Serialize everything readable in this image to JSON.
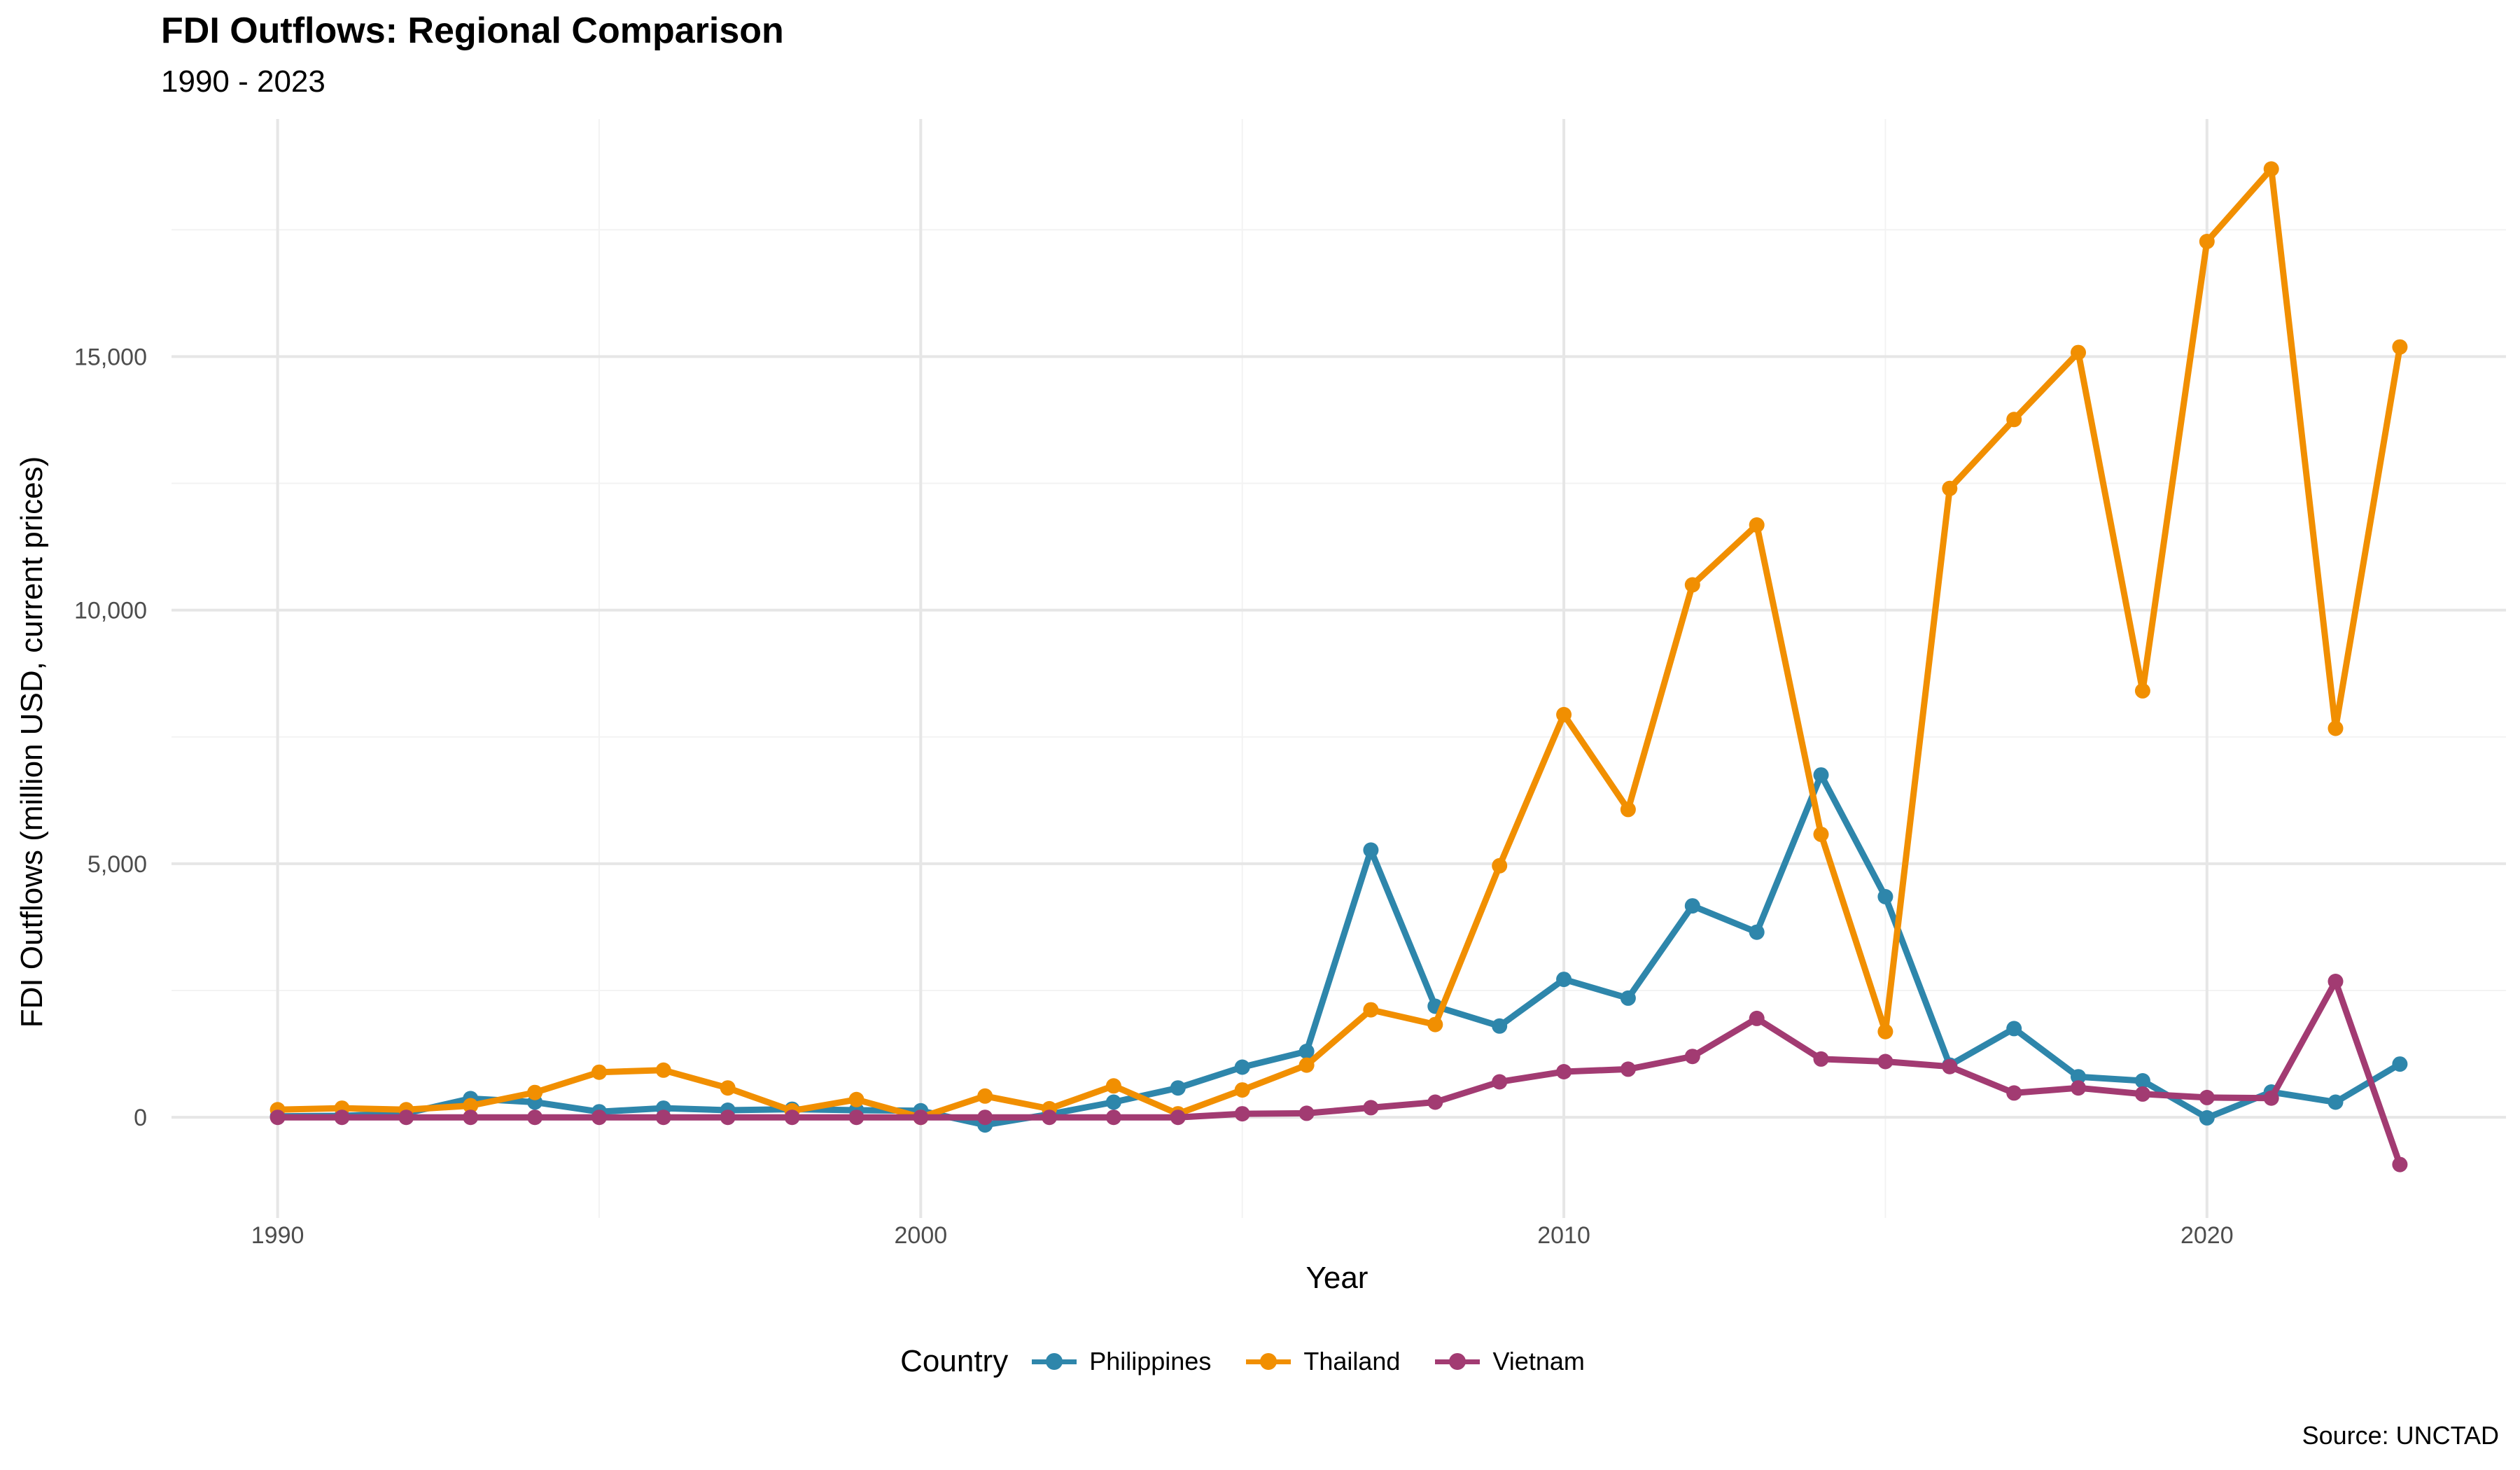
{
  "title": "FDI Outflows: Regional Comparison",
  "subtitle": "1990 - 2023",
  "caption": "Source: UNCTAD",
  "legend_title": "Country",
  "chart_data": {
    "type": "line",
    "xlabel": "Year",
    "ylabel": "FDI Outflows (million USD, current prices)",
    "xlim": [
      1990,
      2023
    ],
    "ylim": [
      -1000,
      18700
    ],
    "xticks": [
      1990,
      2000,
      2010,
      2020
    ],
    "yticks": [
      0,
      5000,
      10000,
      15000
    ],
    "ytick_labels": [
      "0",
      "5,000",
      "10,000",
      "15,000"
    ],
    "grid": true,
    "legend_position": "bottom",
    "x": [
      1990,
      1991,
      1992,
      1993,
      1994,
      1995,
      1996,
      1997,
      1998,
      1999,
      2000,
      2001,
      2002,
      2003,
      2004,
      2005,
      2006,
      2007,
      2008,
      2009,
      2010,
      2011,
      2012,
      2013,
      2014,
      2015,
      2016,
      2017,
      2018,
      2019,
      2020,
      2021,
      2022,
      2023
    ],
    "series": [
      {
        "name": "Philippines",
        "color": "#2E86AB",
        "values": [
          20,
          30,
          80,
          370,
          300,
          110,
          180,
          140,
          160,
          140,
          130,
          -150,
          60,
          300,
          580,
          990,
          1300,
          5270,
          2190,
          1800,
          2720,
          2350,
          4170,
          3650,
          6750,
          4350,
          1030,
          1750,
          800,
          720,
          -10,
          500,
          300,
          1050
        ]
      },
      {
        "name": "Thailand",
        "color": "#F18F01",
        "values": [
          150,
          180,
          150,
          230,
          490,
          890,
          930,
          580,
          130,
          350,
          0,
          420,
          170,
          620,
          70,
          540,
          1030,
          2120,
          1830,
          4960,
          7940,
          6070,
          10500,
          11680,
          5580,
          1690,
          12400,
          13760,
          15080,
          8410,
          17270,
          18700,
          7670,
          15190
        ]
      },
      {
        "name": "Vietnam",
        "color": "#A23B72",
        "values": [
          0,
          0,
          0,
          0,
          0,
          0,
          0,
          0,
          0,
          0,
          0,
          0,
          0,
          0,
          0,
          70,
          80,
          190,
          300,
          700,
          900,
          950,
          1200,
          1950,
          1150,
          1100,
          1000,
          480,
          580,
          460,
          390,
          380,
          2680,
          -930
        ]
      }
    ]
  }
}
